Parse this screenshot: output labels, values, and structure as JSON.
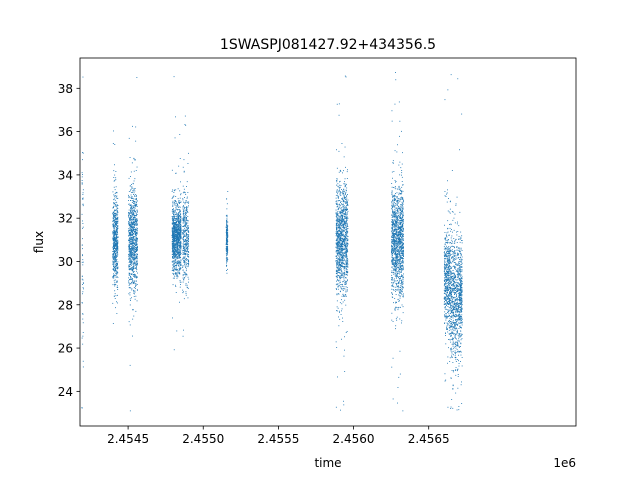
{
  "chart_data": {
    "type": "scatter",
    "title": "1SWASPJ081427.92+434356.5",
    "xlabel": "time",
    "ylabel": "flux",
    "x_offset_label": "1e6",
    "x_ticks": [
      "2.4545",
      "2.4550",
      "2.4555",
      "2.4560",
      "2.4565"
    ],
    "y_ticks": [
      "24",
      "26",
      "28",
      "30",
      "32",
      "34",
      "36",
      "38"
    ],
    "xlim": [
      2454180,
      2457480
    ],
    "ylim": [
      22.4,
      39.4
    ],
    "grid": false,
    "marker_color": "#1f77b4",
    "clusters": [
      {
        "x_range": [
          2454190,
          2454200
        ],
        "y_center": 31.0,
        "y_sd": 2.8,
        "n": 60
      },
      {
        "x_range": [
          2454395,
          2454430
        ],
        "y_center": 31.0,
        "y_sd": 1.0,
        "n": 600
      },
      {
        "x_range": [
          2454500,
          2454560
        ],
        "y_center": 31.0,
        "y_sd": 1.2,
        "n": 900
      },
      {
        "x_range": [
          2454790,
          2454850
        ],
        "y_center": 31.1,
        "y_sd": 0.8,
        "n": 1100
      },
      {
        "x_range": [
          2454860,
          2454900
        ],
        "y_center": 31.0,
        "y_sd": 1.1,
        "n": 400
      },
      {
        "x_range": [
          2455150,
          2455160
        ],
        "y_center": 31.0,
        "y_sd": 0.5,
        "n": 200
      },
      {
        "x_range": [
          2455880,
          2455960
        ],
        "y_center": 31.0,
        "y_sd": 1.3,
        "n": 1200
      },
      {
        "x_range": [
          2456250,
          2456330
        ],
        "y_center": 31.0,
        "y_sd": 1.3,
        "n": 1300
      },
      {
        "x_range": [
          2456600,
          2456640
        ],
        "y_center": 29.3,
        "y_sd": 1.2,
        "n": 500
      },
      {
        "x_range": [
          2456640,
          2456700
        ],
        "y_center": 28.3,
        "y_sd": 1.6,
        "n": 700
      },
      {
        "x_range": [
          2456700,
          2456720
        ],
        "y_center": 28.6,
        "y_sd": 1.2,
        "n": 300
      }
    ]
  }
}
